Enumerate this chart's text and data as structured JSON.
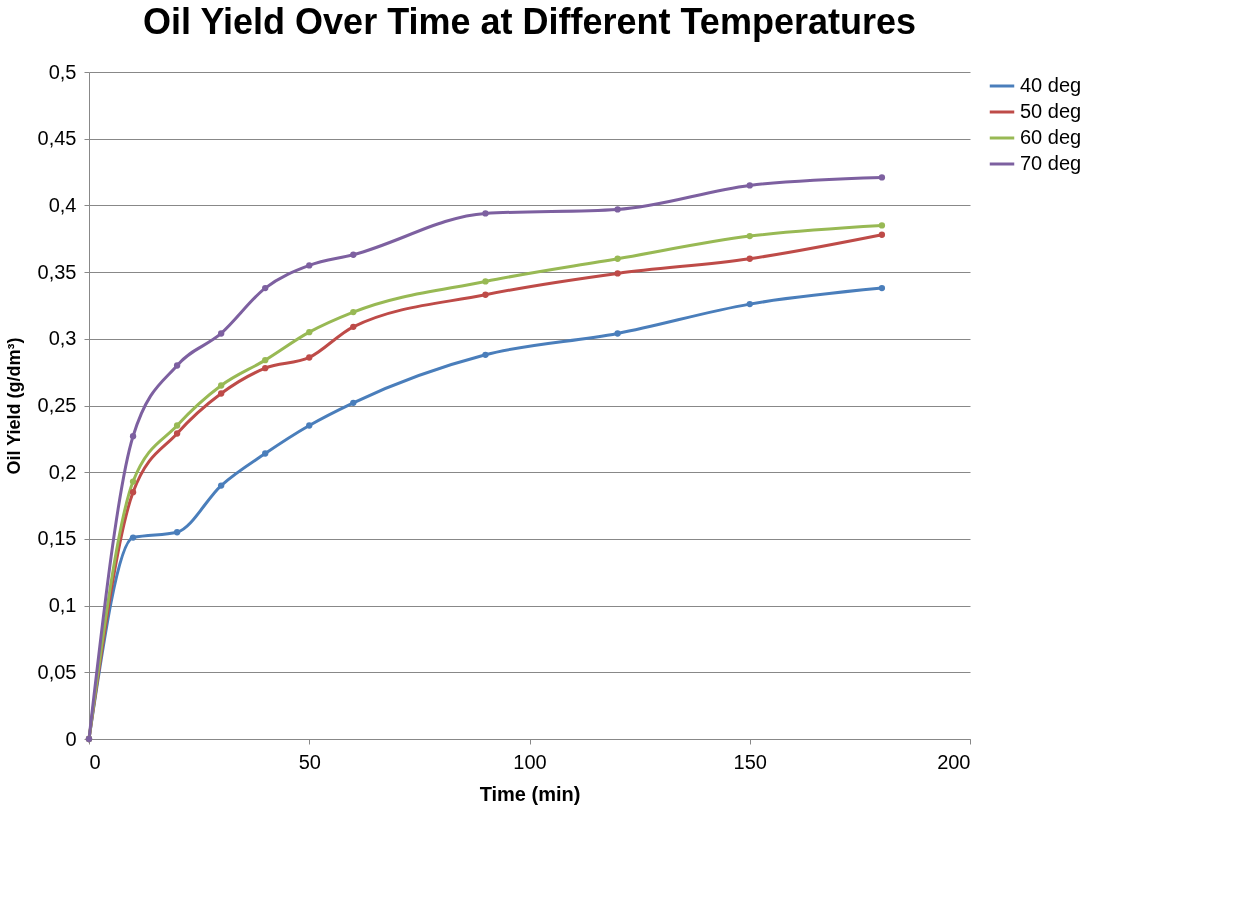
{
  "chart_data": {
    "type": "line",
    "title": "Oil Yield Over Time at Different Temperatures",
    "xlabel": "Time (min)",
    "ylabel": "Oil Yield (g/dm³)",
    "x": [
      0,
      10,
      20,
      30,
      40,
      50,
      60,
      90,
      120,
      150,
      180
    ],
    "series": [
      {
        "name": "40 deg",
        "color": "#4a7ebb",
        "values": [
          0,
          0.151,
          0.155,
          0.19,
          0.214,
          0.235,
          0.252,
          0.288,
          0.304,
          0.326,
          0.338
        ]
      },
      {
        "name": "50 deg",
        "color": "#be4b48",
        "values": [
          0,
          0.185,
          0.229,
          0.259,
          0.278,
          0.286,
          0.309,
          0.333,
          0.349,
          0.36,
          0.378
        ]
      },
      {
        "name": "60 deg",
        "color": "#98b954",
        "values": [
          0,
          0.193,
          0.235,
          0.265,
          0.284,
          0.305,
          0.32,
          0.343,
          0.36,
          0.377,
          0.385
        ]
      },
      {
        "name": "70 deg",
        "color": "#7d60a0",
        "values": [
          0,
          0.227,
          0.28,
          0.304,
          0.338,
          0.355,
          0.363,
          0.394,
          0.397,
          0.415,
          0.421
        ]
      }
    ],
    "xlim": [
      0,
      200
    ],
    "xticks": [
      0,
      50,
      100,
      150,
      200
    ],
    "ylim": [
      0,
      0.5
    ],
    "yticks": [
      0,
      {
        "value": 0.05,
        "label": "0,05"
      },
      {
        "value": 0.1,
        "label": "0,1"
      },
      {
        "value": 0.15,
        "label": "0,15"
      },
      {
        "value": 0.2,
        "label": "0,2"
      },
      {
        "value": 0.25,
        "label": "0,25"
      },
      {
        "value": 0.3,
        "label": "0,3"
      },
      {
        "value": 0.35,
        "label": "0,35"
      },
      {
        "value": 0.4,
        "label": "0,4"
      },
      {
        "value": 0.45,
        "label": "0,45"
      },
      {
        "value": 0.5,
        "label": "0,5"
      }
    ],
    "grid": "y",
    "legend": "right",
    "marker": "circle",
    "line_style": "solid"
  }
}
